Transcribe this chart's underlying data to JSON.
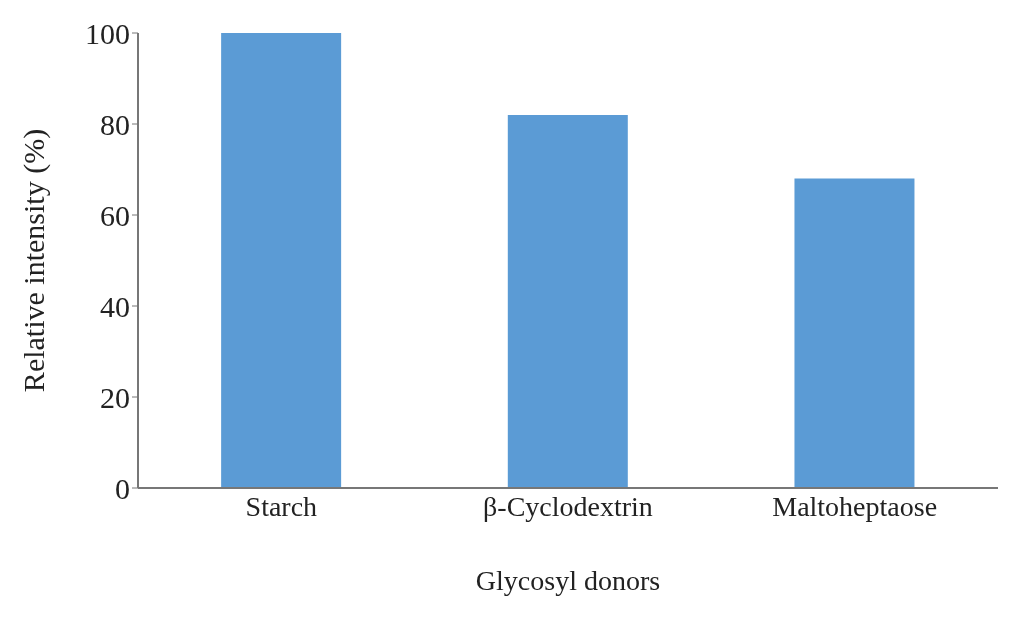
{
  "chart_data": {
    "type": "bar",
    "xlabel": "Glycosyl donors",
    "ylabel": "Relative intensity  (%)",
    "categories": [
      "Starch",
      "β-Cyclodextrin",
      "Maltoheptaose"
    ],
    "values": [
      100,
      82,
      68
    ],
    "color": "#5b9bd5",
    "ylim": [
      0,
      100
    ],
    "yticks": [
      0,
      20,
      40,
      60,
      80,
      100
    ],
    "grid": false,
    "legend": false
  }
}
